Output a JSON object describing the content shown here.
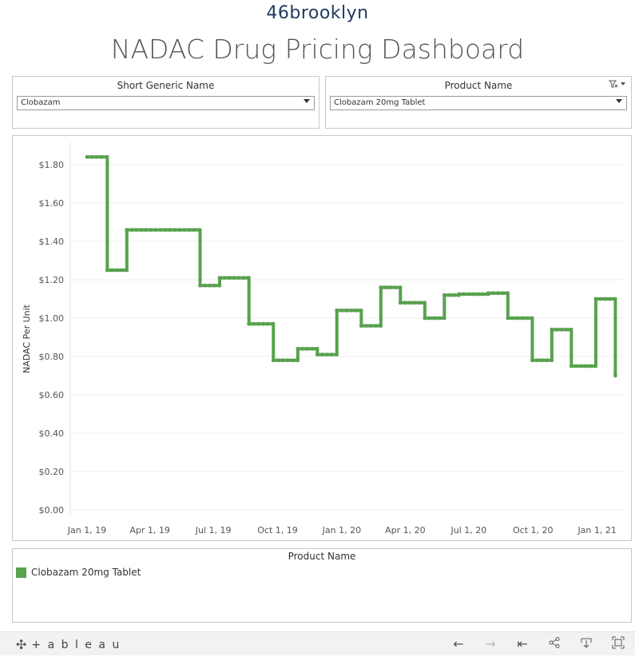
{
  "brand": {
    "logo_text": "46brooklyn"
  },
  "dashboard": {
    "title": "NADAC Drug Pricing Dashboard"
  },
  "filters": {
    "generic": {
      "label": "Short Generic Name",
      "value": "Clobazam"
    },
    "product": {
      "label": "Product Name",
      "value": "Clobazam 20mg Tablet",
      "tools_icon": "filter-clear-icon"
    }
  },
  "legend": {
    "title": "Product Name",
    "items": [
      {
        "label": "Clobazam 20mg Tablet",
        "color": "#59a14f"
      }
    ]
  },
  "footer": {
    "logo_text": "+ a b l e a u",
    "tools": [
      "undo-icon",
      "redo-icon",
      "revert-icon",
      "share-icon",
      "download-icon",
      "fullscreen-icon"
    ]
  },
  "chart_data": {
    "type": "line",
    "step": true,
    "ylabel": "NADAC Per Unit",
    "xlabel": "",
    "ylim": [
      0,
      1.9
    ],
    "yticks": [
      0,
      0.2,
      0.4,
      0.6,
      0.8,
      1.0,
      1.2,
      1.4,
      1.6,
      1.8
    ],
    "ytick_labels": [
      "$0.00",
      "$0.20",
      "$0.40",
      "$0.60",
      "$0.80",
      "$1.00",
      "$1.20",
      "$1.40",
      "$1.60",
      "$1.80"
    ],
    "xlim": [
      "2018-12-08",
      "2021-02-07"
    ],
    "xticks": [
      "2019-01-01",
      "2019-04-01",
      "2019-07-01",
      "2019-10-01",
      "2020-01-01",
      "2020-04-01",
      "2020-07-01",
      "2020-10-01",
      "2021-01-01"
    ],
    "xtick_labels": [
      "Jan 1, 19",
      "Apr 1, 19",
      "Jul 1, 19",
      "Oct 1, 19",
      "Jan 1, 20",
      "Apr 1, 20",
      "Jul 1, 20",
      "Oct 1, 20",
      "Jan 1, 21"
    ],
    "grid": true,
    "series": [
      {
        "name": "Clobazam 20mg Tablet",
        "color": "#59a14f",
        "points": [
          [
            "2019-01-01",
            1.84
          ],
          [
            "2019-01-30",
            1.25
          ],
          [
            "2019-02-27",
            1.46
          ],
          [
            "2019-06-12",
            1.17
          ],
          [
            "2019-07-10",
            1.21
          ],
          [
            "2019-08-21",
            0.97
          ],
          [
            "2019-09-25",
            0.78
          ],
          [
            "2019-10-30",
            0.84
          ],
          [
            "2019-11-27",
            0.81
          ],
          [
            "2019-12-25",
            1.04
          ],
          [
            "2020-01-29",
            0.96
          ],
          [
            "2020-02-26",
            1.16
          ],
          [
            "2020-03-25",
            1.08
          ],
          [
            "2020-04-29",
            1.0
          ],
          [
            "2020-05-27",
            1.12
          ],
          [
            "2020-06-17",
            1.125
          ],
          [
            "2020-07-29",
            1.13
          ],
          [
            "2020-08-26",
            1.0
          ],
          [
            "2020-09-30",
            0.78
          ],
          [
            "2020-10-28",
            0.94
          ],
          [
            "2020-11-25",
            0.75
          ],
          [
            "2020-12-30",
            1.1
          ],
          [
            "2021-01-27",
            0.7
          ]
        ],
        "end_date": "2021-01-27"
      }
    ]
  }
}
